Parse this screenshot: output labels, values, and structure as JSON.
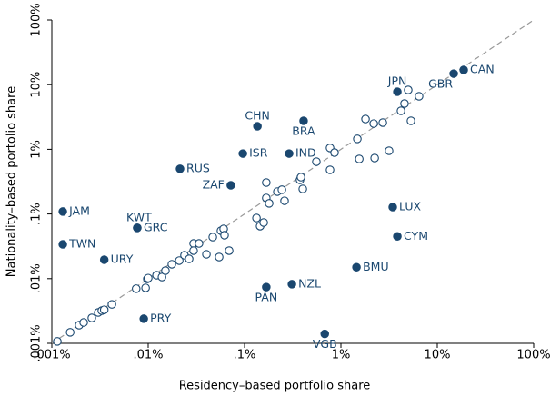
{
  "chart_data": {
    "type": "scatter",
    "x_label": "Residency–based portfolio share",
    "y_label": "Nationality–based portolio share",
    "xscale": "log",
    "yscale": "log",
    "xlim": [
      0.001,
      100
    ],
    "ylim": [
      0.001,
      100
    ],
    "xticks": [
      {
        "value": 0.001,
        "label": ".001%"
      },
      {
        "value": 0.01,
        "label": ".01%"
      },
      {
        "value": 0.1,
        "label": ".1%"
      },
      {
        "value": 1,
        "label": "1%"
      },
      {
        "value": 10,
        "label": "10%"
      },
      {
        "value": 100,
        "label": "100%"
      }
    ],
    "yticks": [
      {
        "value": 0.001,
        "label": ".001%"
      },
      {
        "value": 0.01,
        "label": ".01%"
      },
      {
        "value": 0.1,
        "label": ".1%"
      },
      {
        "value": 1,
        "label": "1%"
      },
      {
        "value": 10,
        "label": "10%"
      },
      {
        "value": 100,
        "label": "100%"
      }
    ],
    "diagonal": true,
    "diagonal_color": "#999999",
    "series": [
      {
        "marker": "filled",
        "color": "#1a476f",
        "label_color": "#1a476f",
        "labels": [
          "CAN",
          "GBR",
          "JPN",
          "CHN",
          "BRA",
          "ISR",
          "IND",
          "RUS",
          "ZAF",
          "JAM",
          "TWN",
          "KWT",
          "GRC",
          "URY",
          "PRY",
          "PAN",
          "NZL",
          "VGB",
          "BMU",
          "LUX",
          "CYM"
        ],
        "x": [
          18.8,
          14.8,
          3.85,
          0.136,
          0.41,
          0.096,
          0.29,
          0.0214,
          0.072,
          0.0013,
          0.0013,
          0.0077,
          0.0077,
          0.0035,
          0.009,
          0.168,
          0.31,
          0.68,
          1.45,
          3.45,
          3.85
        ],
        "y": [
          16.9,
          14.8,
          7.77,
          2.27,
          2.76,
          0.86,
          0.86,
          0.5,
          0.278,
          0.109,
          0.034,
          0.061,
          0.061,
          0.0196,
          0.0024,
          0.0074,
          0.0082,
          0.0014,
          0.015,
          0.128,
          0.045
        ]
      },
      {
        "marker": "hollow",
        "color": "#1a476f",
        "x": [
          0.00114,
          0.00155,
          0.00192,
          0.00214,
          0.0026,
          0.00303,
          0.0033,
          0.0035,
          0.0042,
          0.0075,
          0.0094,
          0.0098,
          0.01,
          0.0122,
          0.0139,
          0.0151,
          0.0176,
          0.021,
          0.0238,
          0.0266,
          0.0296,
          0.0337,
          0.0296,
          0.0402,
          0.0468,
          0.0545,
          0.0569,
          0.0607,
          0.062,
          0.0692,
          0.133,
          0.145,
          0.158,
          0.168,
          0.168,
          0.18,
          0.219,
          0.244,
          0.26,
          0.376,
          0.385,
          0.402,
          0.556,
          0.771,
          0.859,
          0.771,
          1.48,
          1.55,
          1.8,
          2.19,
          2.24,
          2.72,
          3.16,
          4.2,
          4.57,
          4.99,
          5.33,
          6.47
        ],
        "y": [
          0.00107,
          0.00148,
          0.00191,
          0.0021,
          0.00247,
          0.003,
          0.0032,
          0.0033,
          0.004,
          0.007,
          0.0072,
          0.0099,
          0.0102,
          0.0113,
          0.0106,
          0.0133,
          0.0167,
          0.019,
          0.023,
          0.0202,
          0.035,
          0.035,
          0.0271,
          0.0238,
          0.044,
          0.0216,
          0.0552,
          0.0589,
          0.0469,
          0.0271,
          0.0867,
          0.0649,
          0.0738,
          0.177,
          0.306,
          0.146,
          0.222,
          0.237,
          0.16,
          0.337,
          0.371,
          0.244,
          0.644,
          1.05,
          0.889,
          0.482,
          1.45,
          0.71,
          2.94,
          2.5,
          0.733,
          2.59,
          0.95,
          3.94,
          5.1,
          8.28,
          2.76,
          6.61
        ]
      }
    ]
  }
}
